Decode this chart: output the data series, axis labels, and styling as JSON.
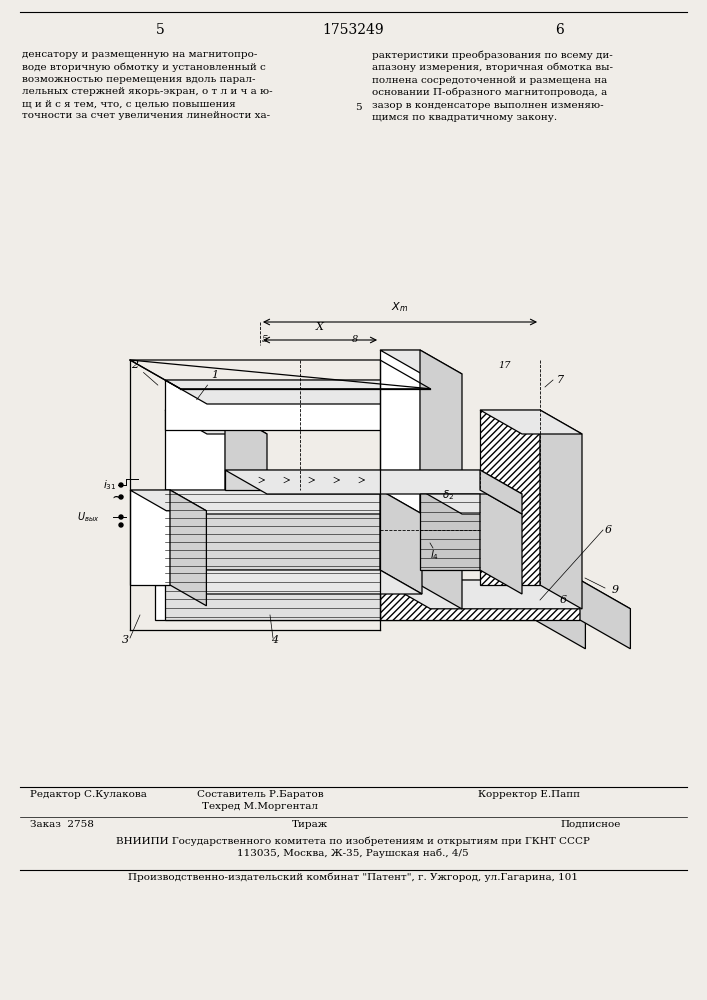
{
  "bg_color": "#f0ede8",
  "page_number_left": "5",
  "page_number_center": "1753249",
  "page_number_right": "6",
  "text_left": "денсатору и размещенную на магнитопро-\nводе вторичную обмотку и установленный с\nвозможностью перемещения вдоль парал-\nлельных стержней якорь-экран, о т л и ч а ю-\nщ и й с я тем, что, с целью повышения\nточности за счет увеличения линейности ха-",
  "text_right": "рактеристики преобразования по всему ди-\nапазону измерения, вторичная обмотка вы-\nполнена сосредоточенной и размещена на\nосновании П-образного магнитопровода, а\nзазор в конденсаторе выполнен изменяю-\nщимся по квадратичному закону.",
  "footer_editor": "Редактор С.Кулакова",
  "footer_composer": "Составитель Р.Баратов\nТехред М.Моргентал",
  "footer_corrector": "Корректор Е.Папп",
  "footer_order": "Заказ  2758",
  "footer_circulation": "Тираж",
  "footer_subscription": "Подписное",
  "footer_vniiipi": "ВНИИПИ Государственного комитета по изобретениям и открытиям при ГКНТ СССР\n113035, Москва, Ж-35, Раушская наб., 4/5",
  "footer_plant": "Производственно-издательский комбинат \"Патент\", г. Ужгород, ул.Гагарина, 101"
}
